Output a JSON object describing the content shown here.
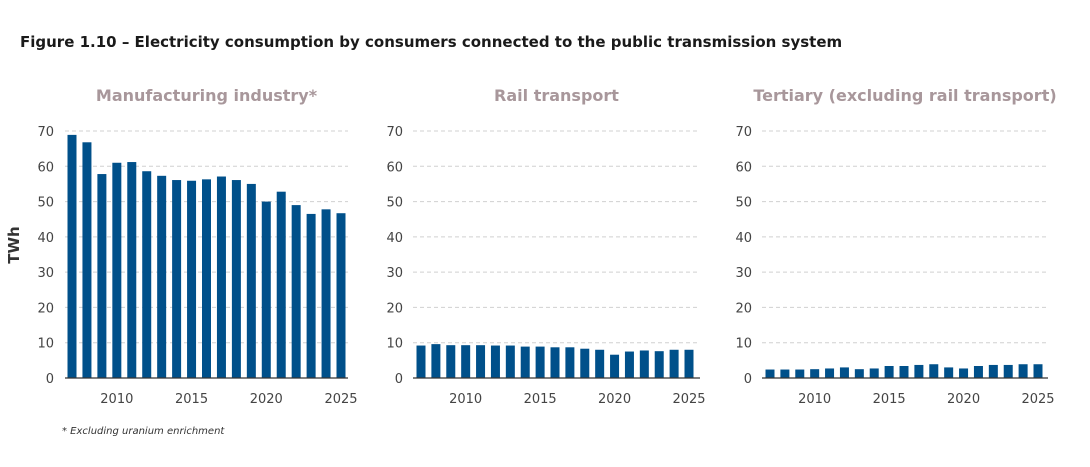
{
  "figure_title": "Figure 1.10 – Electricity consumption by consumers connected to the public transmission system",
  "footnote": "* Excluding uranium enrichment",
  "colors": {
    "bar": "#00508a",
    "panel_title": "#a8979b",
    "grid": "#d0d0d0"
  },
  "chart_data": [
    {
      "type": "bar",
      "title": "Manufacturing industry*",
      "ylabel": "TWh",
      "ylim": [
        0,
        70
      ],
      "yticks": [
        0,
        10,
        20,
        30,
        40,
        50,
        60,
        70
      ],
      "xticks": [
        2010,
        2015,
        2020,
        2025
      ],
      "grid": true,
      "categories": [
        2007,
        2008,
        2009,
        2010,
        2011,
        2012,
        2013,
        2014,
        2015,
        2016,
        2017,
        2018,
        2019,
        2020,
        2021,
        2022,
        2023,
        2024,
        2025
      ],
      "values": [
        68.9,
        66.8,
        57.8,
        61.0,
        61.2,
        58.6,
        57.3,
        56.1,
        55.9,
        56.3,
        57.1,
        56.1,
        55.0,
        50.0,
        52.8,
        49.0,
        46.5,
        47.8,
        46.7
      ]
    },
    {
      "type": "bar",
      "title": "Rail transport",
      "ylim": [
        0,
        70
      ],
      "yticks": [
        0,
        10,
        20,
        30,
        40,
        50,
        60,
        70
      ],
      "xticks": [
        2010,
        2015,
        2020,
        2025
      ],
      "grid": true,
      "categories": [
        2007,
        2008,
        2009,
        2010,
        2011,
        2012,
        2013,
        2014,
        2015,
        2016,
        2017,
        2018,
        2019,
        2020,
        2021,
        2022,
        2023,
        2024,
        2025
      ],
      "values": [
        9.2,
        9.6,
        9.3,
        9.3,
        9.3,
        9.2,
        9.2,
        8.9,
        8.9,
        8.7,
        8.7,
        8.3,
        8.0,
        6.6,
        7.5,
        7.8,
        7.6,
        8.0,
        8.0
      ]
    },
    {
      "type": "bar",
      "title": "Tertiary (excluding rail transport)",
      "ylim": [
        0,
        70
      ],
      "yticks": [
        0,
        10,
        20,
        30,
        40,
        50,
        60,
        70
      ],
      "xticks": [
        2010,
        2015,
        2020,
        2025
      ],
      "grid": true,
      "categories": [
        2007,
        2008,
        2009,
        2010,
        2011,
        2012,
        2013,
        2014,
        2015,
        2016,
        2017,
        2018,
        2019,
        2020,
        2021,
        2022,
        2023,
        2024,
        2025
      ],
      "values": [
        2.4,
        2.4,
        2.4,
        2.5,
        2.7,
        3.0,
        2.5,
        2.7,
        3.4,
        3.4,
        3.7,
        3.9,
        3.0,
        2.7,
        3.4,
        3.7,
        3.7,
        3.9,
        3.9
      ]
    }
  ]
}
